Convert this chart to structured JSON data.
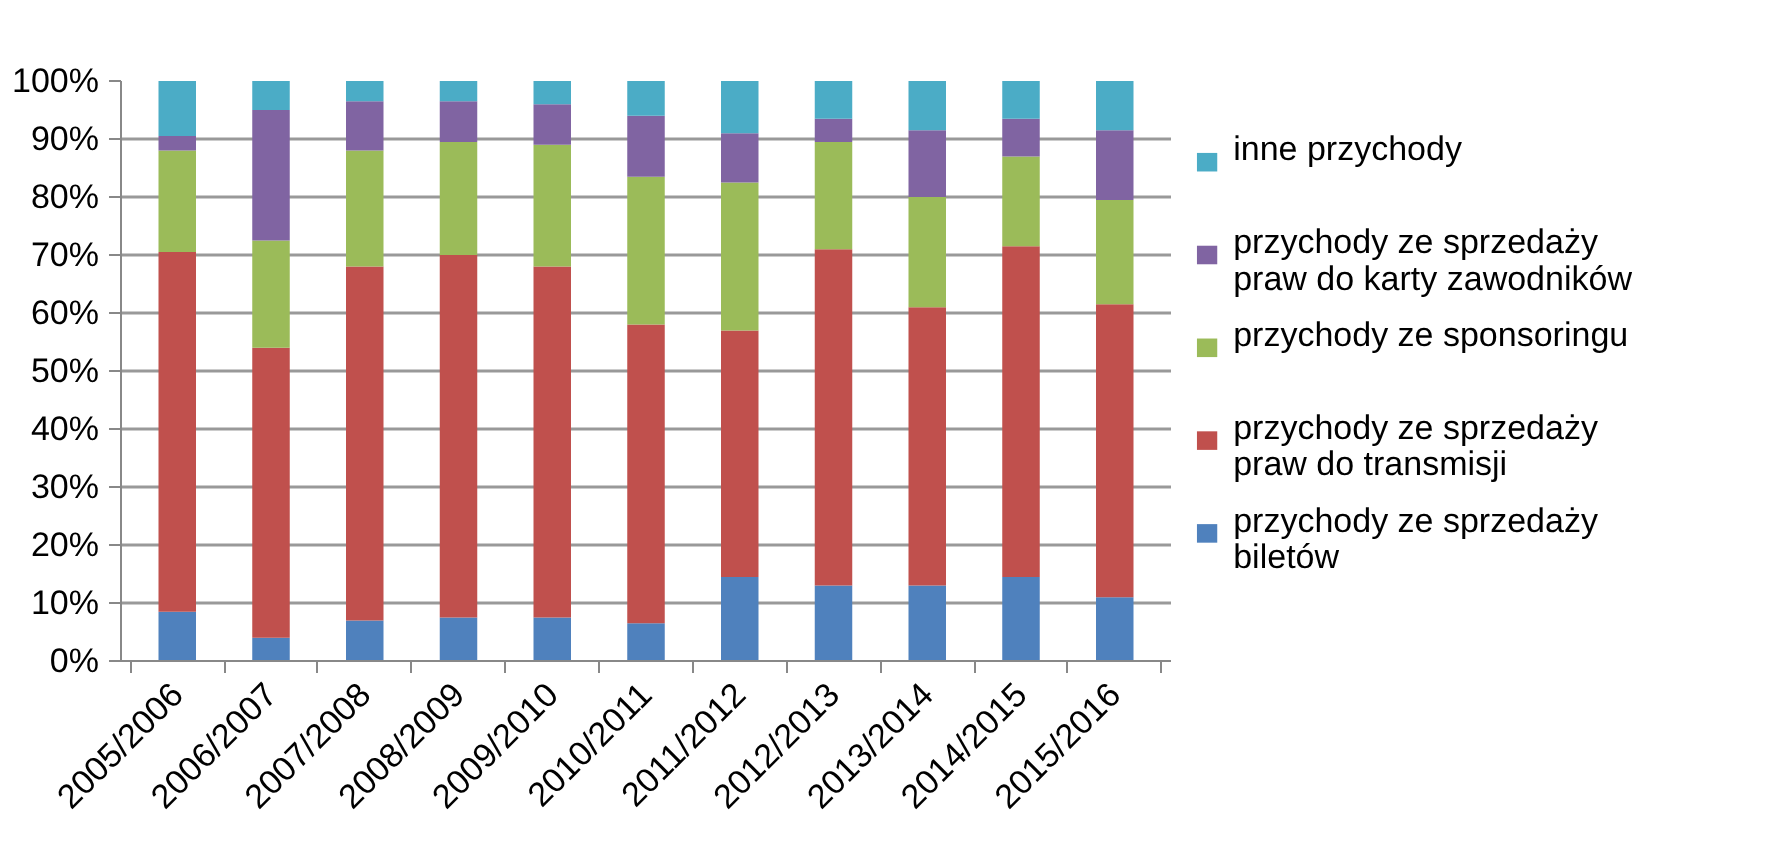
{
  "chart_data": {
    "type": "bar",
    "stacked": true,
    "categories": [
      "2005/2006",
      "2006/2007",
      "2007/2008",
      "2008/2009",
      "2009/2010",
      "2010/2011",
      "2011/2012",
      "2012/2013",
      "2013/2014",
      "2014/2015",
      "2015/2016"
    ],
    "series": [
      {
        "name": "przychody ze sprzedaży biletów",
        "color": "#4f81bd",
        "values": [
          8.5,
          4,
          7,
          7.5,
          7.5,
          6.5,
          14.5,
          13,
          13,
          14.5,
          11
        ]
      },
      {
        "name": "przychody ze sprzedaży praw do transmisji",
        "color": "#c0504d",
        "values": [
          62,
          50,
          61,
          62.5,
          60.5,
          51.5,
          42.5,
          58,
          48,
          57,
          50.5
        ]
      },
      {
        "name": "przychody ze sponsoringu",
        "color": "#9bbb59",
        "values": [
          17.5,
          18.5,
          20,
          19.5,
          21,
          25.5,
          25.5,
          18.5,
          19,
          15.5,
          18
        ]
      },
      {
        "name": "przychody ze sprzedaży praw do karty zawodników",
        "color": "#8064a2",
        "values": [
          2.5,
          22.5,
          8.5,
          7,
          7,
          10.5,
          8.5,
          4,
          11.5,
          6.5,
          12
        ]
      },
      {
        "name": "inne przychody",
        "color": "#4bacc6",
        "values": [
          9.5,
          5,
          3.5,
          3.5,
          4,
          6,
          9,
          6.5,
          8.5,
          6.5,
          8.5
        ]
      }
    ],
    "ylim": [
      0,
      100
    ],
    "yticks": [
      {
        "value": 0,
        "label": "0%"
      },
      {
        "value": 10,
        "label": "10%"
      },
      {
        "value": 20,
        "label": "20%"
      },
      {
        "value": 30,
        "label": "30%"
      },
      {
        "value": 40,
        "label": "40%"
      },
      {
        "value": 50,
        "label": "50%"
      },
      {
        "value": 60,
        "label": "60%"
      },
      {
        "value": 70,
        "label": "70%"
      },
      {
        "value": 80,
        "label": "80%"
      },
      {
        "value": 90,
        "label": "90%"
      },
      {
        "value": 100,
        "label": "100%"
      }
    ],
    "grid": "y",
    "legend": "right"
  }
}
